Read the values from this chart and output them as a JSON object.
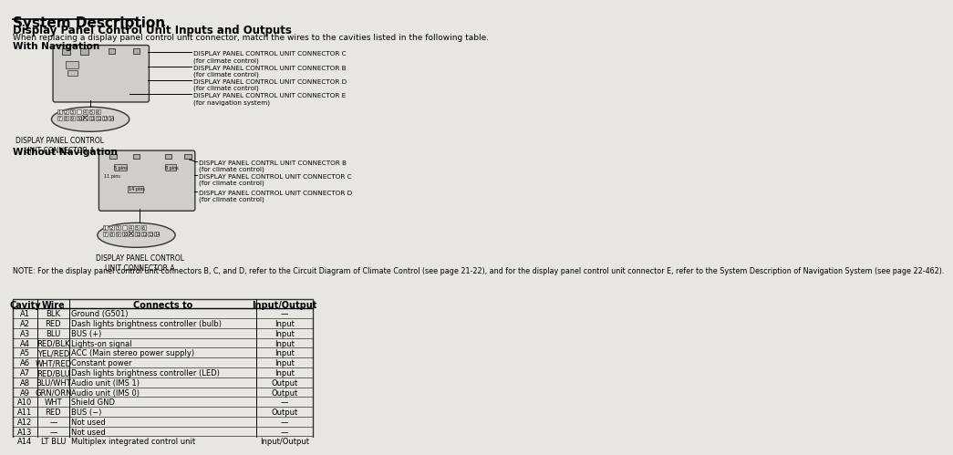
{
  "title": "System Description",
  "subtitle": "Display Panel Control Unit Inputs and Outputs",
  "intro_text": "When replacing a display panel control unit connector, match the wires to the cavities listed in the following table.",
  "with_nav_label": "With Navigation",
  "without_nav_label": "Without Navigation",
  "connector_labels_with_nav": [
    "DISPLAY PANEL CONTROL UNIT CONNECTOR C\n(for climate control)",
    "DISPLAY PANEL CONTROL UNIT CONNECTOR B\n(for climate control)",
    "DISPLAY PANEL CONTROL UNIT CONNECTOR D\n(for climate control)",
    "DISPLAY PANEL CONTROL UNIT CONNECTOR E\n(for navigation system)"
  ],
  "connector_labels_without_nav": [
    "DISPLAY PANEL CONTRL UNIT CONNECTOR B\n(for climate control)",
    "DISPLAY PANEL CONTROL UNIT CONNECTOR C\n(for climate control)",
    "DISPLAY PANEL CONTROL UNIT CONNECTOR D\n(for climate control)"
  ],
  "connector_a_label": "DISPLAY PANEL CONTROL\nUNIT CONNECTOR A",
  "note_text": "NOTE: For the display panel control unit connectors B, C, and D, refer to the Circuit Diagram of Climate Control (see page 21-22), and for the display panel control unit connector E, refer to the System Description of Navigation System (see page 22-462).",
  "table_headers": [
    "Cavity",
    "Wire",
    "Connects to",
    "Input/Output"
  ],
  "table_rows": [
    [
      "A1",
      "BLK",
      "Ground (G501)",
      "—"
    ],
    [
      "A2",
      "RED",
      "Dash lights brightness controller (bulb)",
      "Input"
    ],
    [
      "A3",
      "BLU",
      "BUS (+)",
      "Input"
    ],
    [
      "A4",
      "RED/BLK",
      "Lights-on signal",
      "Input"
    ],
    [
      "A5",
      "YEL/RED",
      "ACC (Main stereo power supply)",
      "Input"
    ],
    [
      "A6",
      "WHT/RED",
      "Constant power",
      "Input"
    ],
    [
      "A7",
      "RED/BLU",
      "Dash lights brightness controller (LED)",
      "Input"
    ],
    [
      "A8",
      "BLU/WHT",
      "Audio unit (IMS 1)",
      "Output"
    ],
    [
      "A9",
      "GRN/ORN",
      "Audio unit (IMS 0)",
      "Output"
    ],
    [
      "A10",
      "WHT",
      "Shield GND",
      "—"
    ],
    [
      "A11",
      "RED",
      "BUS (−)",
      "Output"
    ],
    [
      "A12",
      "—",
      "Not used",
      "—"
    ],
    [
      "A13",
      "—",
      "Not used",
      "—"
    ],
    [
      "A14",
      "LT BLU",
      "Multiplex integrated control unit",
      "Input/Output"
    ]
  ],
  "bg_color": "#e8e6e0",
  "text_color": "#000000",
  "line_color": "#000000"
}
